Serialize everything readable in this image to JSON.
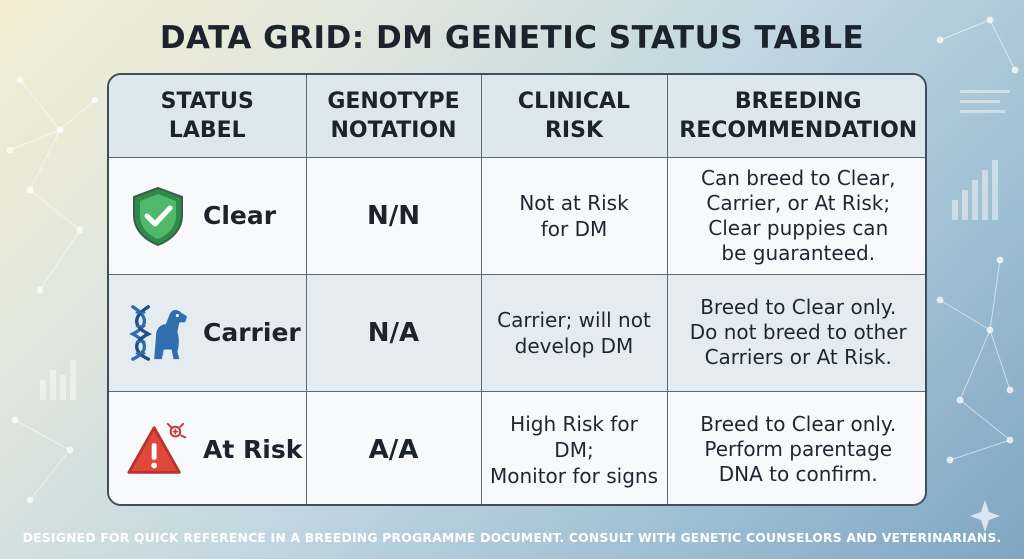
{
  "title": "DATA GRID: DM GENETIC STATUS TABLE",
  "columns": [
    [
      "STATUS",
      "LABEL"
    ],
    [
      "GENOTYPE",
      "NOTATION"
    ],
    [
      "CLINICAL",
      "RISK"
    ],
    [
      "BREEDING",
      "RECOMMENDATION"
    ]
  ],
  "rows": [
    {
      "icon": "shield-check-icon",
      "label": "Clear",
      "genotype": "N/N",
      "risk": [
        "Not at Risk",
        "for DM"
      ],
      "recommendation": [
        "Can breed to Clear,",
        "Carrier, or At Risk;",
        "Clear puppies can",
        "be guaranteed."
      ]
    },
    {
      "icon": "dna-dog-icon",
      "label": "Carrier",
      "genotype": "N/A",
      "risk": [
        "Carrier; will not",
        "develop DM"
      ],
      "recommendation": [
        "Breed to Clear only.",
        "Do not breed to other",
        "Carriers or At Risk."
      ]
    },
    {
      "icon": "warning-triangle-icon",
      "label": "At Risk",
      "genotype": "A/A",
      "risk": [
        "High Risk for DM;",
        "Monitor for signs"
      ],
      "recommendation": [
        "Breed to Clear only.",
        "Perform parentage",
        "DNA to confirm."
      ]
    }
  ],
  "footer": "DESIGNED FOR QUICK REFERENCE IN A BREEDING PROGRAMME DOCUMENT. CONSULT WITH GENETIC COUNSELORS AND VETERINARIANS.",
  "colors": {
    "shield_green": "#3aa35a",
    "dna_blue": "#2f6fb0",
    "warning_red": "#e0483c",
    "text_dark": "#1c232c"
  }
}
